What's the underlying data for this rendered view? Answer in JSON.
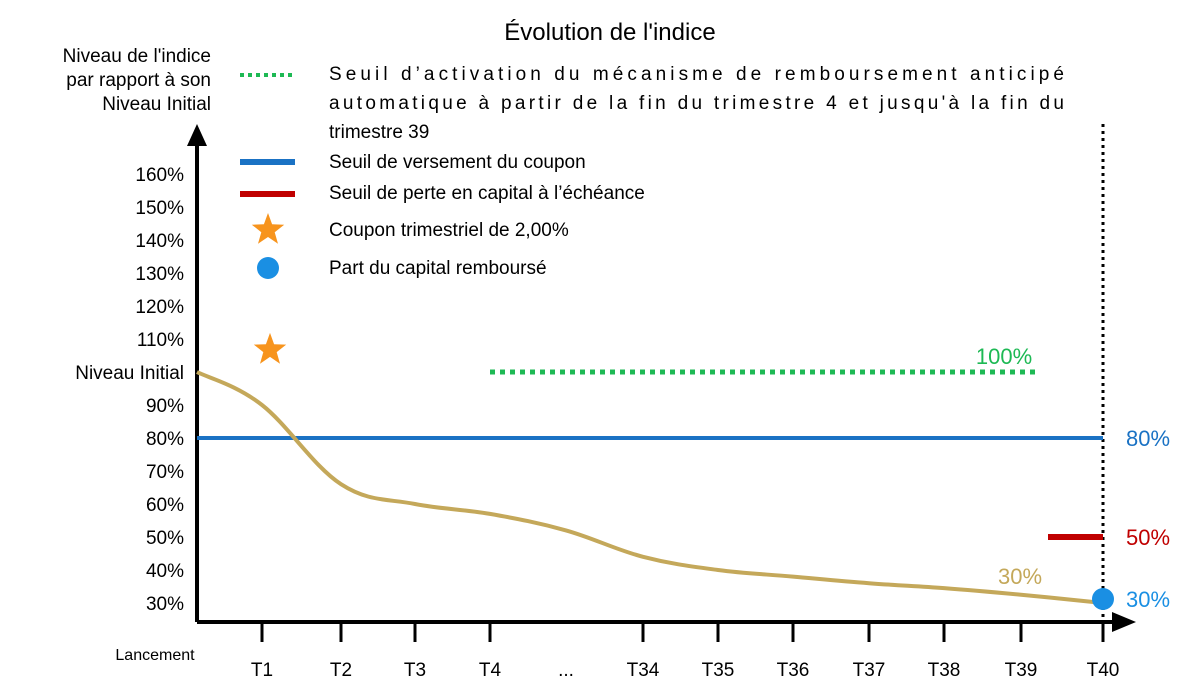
{
  "chart_data": {
    "type": "line",
    "title": "Évolution de l'indice",
    "ylabel": [
      "Niveau de l'indice",
      "par rapport  à son",
      "Niveau Initial"
    ],
    "xlabel": "",
    "categories": [
      "Lancement",
      "T1",
      "T2",
      "T3",
      "T4",
      "...",
      "T34",
      "T35",
      "T36",
      "T37",
      "T38",
      "T39",
      "T40"
    ],
    "y_ticks": [
      {
        "value": 160,
        "label": "160%"
      },
      {
        "value": 150,
        "label": "150%"
      },
      {
        "value": 140,
        "label": "140%"
      },
      {
        "value": 130,
        "label": "130%"
      },
      {
        "value": 120,
        "label": "120%"
      },
      {
        "value": 110,
        "label": "110%"
      },
      {
        "value": 100,
        "label": "Niveau Initial"
      },
      {
        "value": 90,
        "label": "90%"
      },
      {
        "value": 80,
        "label": "80%"
      },
      {
        "value": 70,
        "label": "70%"
      },
      {
        "value": 60,
        "label": "60%"
      },
      {
        "value": 50,
        "label": "50%"
      },
      {
        "value": 40,
        "label": "40%"
      },
      {
        "value": 30,
        "label": "30%"
      }
    ],
    "series": [
      {
        "values": [
          100,
          90,
          66,
          60,
          57,
          52,
          44,
          40,
          38,
          36,
          34.5,
          32.5,
          30
        ],
        "color": "#C4A85A"
      }
    ],
    "thresholds": [
      {
        "name": "autocall",
        "value": 100,
        "from": "T4",
        "to": "T39",
        "style": "dotted",
        "color": "#1DB954",
        "label": "100%"
      },
      {
        "name": "coupon",
        "value": 80,
        "from": "Lancement",
        "to": "T40",
        "style": "solid",
        "color": "#1A72C4",
        "label": "80%"
      },
      {
        "name": "capital-loss",
        "value": 50,
        "at": "T40",
        "style": "solid",
        "color": "#C00000",
        "label": "50%"
      }
    ],
    "markers": [
      {
        "type": "star",
        "x": "T1",
        "value": 107,
        "color": "#F7941D"
      },
      {
        "type": "circle",
        "x": "T40",
        "value": 30,
        "color": "#1A8FE3",
        "label": "30%"
      }
    ],
    "annotations": [
      {
        "text": "30%",
        "color": "#C4A85A"
      }
    ],
    "legend": [
      {
        "symbol": "dotted-line",
        "color": "#1DB954",
        "lines": [
          "Seuil  d’activation  du  mécanisme  de  remboursement  anticipé",
          "automatique  à  partir  de  la  fin  du  trimestre  4  et  jusqu'à  la  fin  du",
          "trimestre 39"
        ]
      },
      {
        "symbol": "solid-line",
        "color": "#1A72C4",
        "lines": [
          "Seuil de versement du coupon"
        ]
      },
      {
        "symbol": "solid-line",
        "color": "#C00000",
        "lines": [
          "Seuil de perte en capital à l’échéance"
        ]
      },
      {
        "symbol": "star",
        "color": "#F7941D",
        "lines": [
          "Coupon trimestriel de 2,00%"
        ]
      },
      {
        "symbol": "circle",
        "color": "#1A8FE3",
        "lines": [
          "Part du capital remboursé"
        ]
      }
    ],
    "vertical_marker": {
      "x": "T40",
      "style": "dotted",
      "color": "#000000"
    },
    "legend_position": "top",
    "ylim": [
      25,
      165
    ],
    "grid": false
  }
}
